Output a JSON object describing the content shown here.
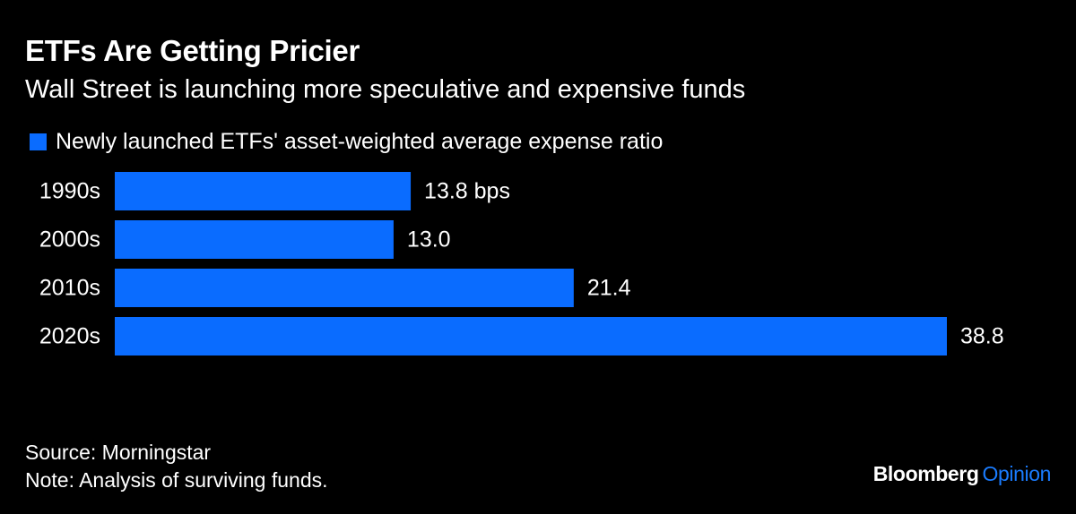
{
  "colors": {
    "background": "#000000",
    "text": "#ffffff",
    "bar": "#0a6cff",
    "brand_accent": "#1a7cff"
  },
  "chart_data": {
    "type": "bar",
    "orientation": "horizontal",
    "title": "ETFs Are Getting Pricier",
    "subtitle": "Wall Street is launching more speculative and expensive funds",
    "legend": [
      "Newly launched ETFs' asset-weighted average expense ratio"
    ],
    "legend_position": "top-left",
    "categories": [
      "1990s",
      "2000s",
      "2010s",
      "2020s"
    ],
    "series": [
      {
        "name": "Newly launched ETFs' asset-weighted average expense ratio",
        "values": [
          13.8,
          13.0,
          21.4,
          38.8
        ]
      }
    ],
    "data_labels": [
      "13.8 bps",
      "13.0",
      "21.4",
      "38.8"
    ],
    "xlim": [
      0,
      38.8
    ],
    "grid": false
  },
  "footer": {
    "source": "Source: Morningstar",
    "note": "Note: Analysis of surviving funds."
  },
  "brand": {
    "name": "Bloomberg",
    "section": "Opinion"
  }
}
